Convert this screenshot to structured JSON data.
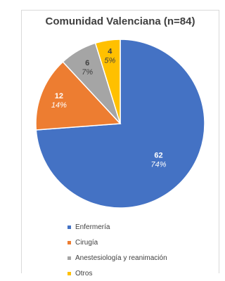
{
  "chart_data": {
    "type": "pie",
    "title": "Comunidad Valenciana (n=84)",
    "categories": [
      "Enfermería",
      "Cirugía",
      "Anestesiología y reanimación",
      "Otros"
    ],
    "values": [
      62,
      12,
      6,
      4
    ],
    "percent_labels": [
      "74%",
      "14%",
      "7%",
      "5%"
    ],
    "count_labels": [
      "62",
      "12",
      "6",
      "4"
    ],
    "colors": [
      "#4472c4",
      "#ed7d31",
      "#a5a5a5",
      "#ffc000"
    ],
    "label_colors": [
      "#ffffff",
      "#ffffff",
      "#404040",
      "#404040"
    ],
    "legend_position": "bottom",
    "start_angle_deg": 0,
    "direction": "clockwise"
  }
}
